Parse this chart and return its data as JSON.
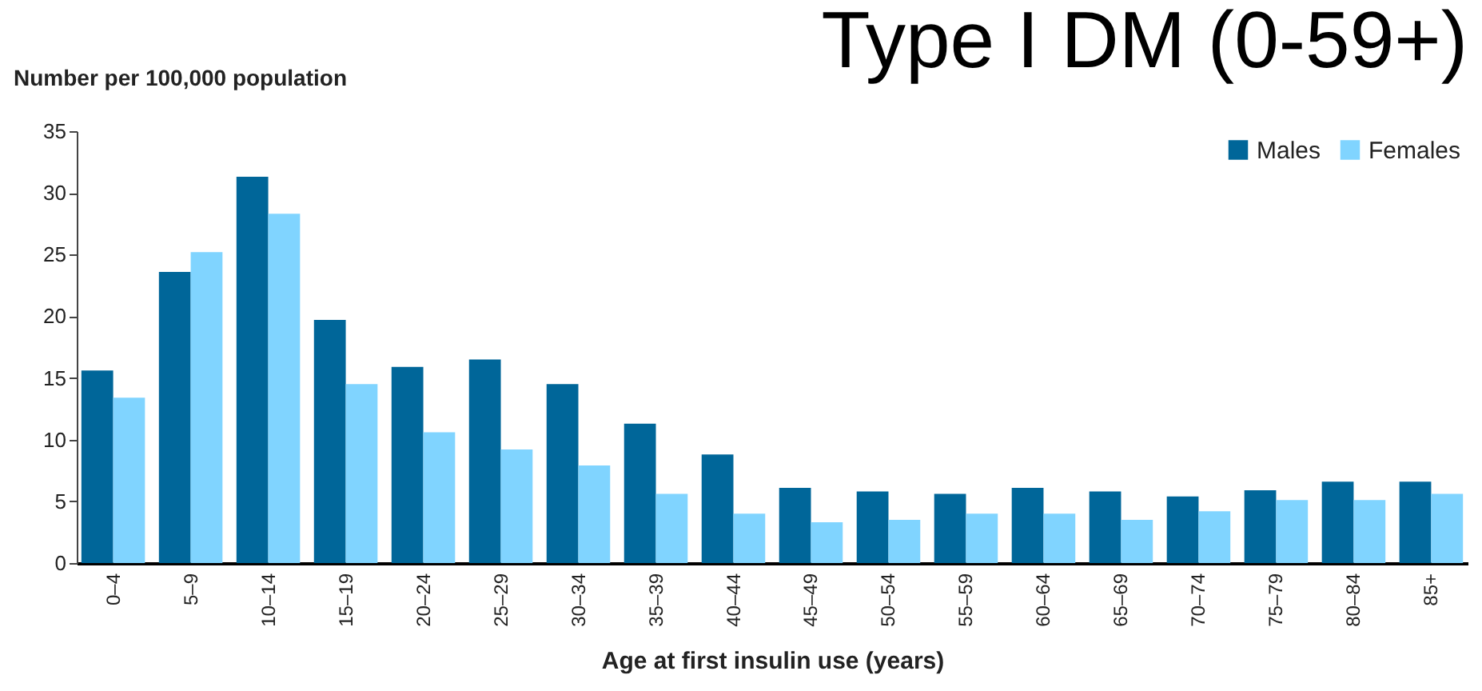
{
  "chart_data": {
    "type": "bar",
    "title": "Type I DM (0-59+)",
    "xlabel": "Age at first insulin use (years)",
    "ylabel": "Number per 100,000 population",
    "categories": [
      "0–4",
      "5–9",
      "10–14",
      "15–19",
      "20–24",
      "25–29",
      "30–34",
      "35–39",
      "40–44",
      "45–49",
      "50–54",
      "55–59",
      "60–64",
      "65–69",
      "70–74",
      "75–79",
      "80–84",
      "85+"
    ],
    "series": [
      {
        "name": "Males",
        "color": "#006699",
        "values": [
          15.6,
          23.6,
          31.3,
          19.7,
          15.9,
          16.5,
          14.5,
          11.3,
          8.8,
          6.1,
          5.8,
          5.6,
          6.1,
          5.8,
          5.4,
          5.9,
          6.6,
          6.6
        ]
      },
      {
        "name": "Females",
        "color": "#80d4ff",
        "values": [
          13.4,
          25.2,
          28.3,
          14.5,
          10.6,
          9.2,
          7.9,
          5.6,
          4.0,
          3.3,
          3.5,
          4.0,
          4.0,
          3.5,
          4.2,
          5.1,
          5.1,
          5.6
        ]
      }
    ],
    "ylim": [
      0,
      35
    ],
    "yticks": [
      0,
      5,
      10,
      15,
      20,
      25,
      30,
      35
    ],
    "grid": false,
    "legend": "top right"
  }
}
